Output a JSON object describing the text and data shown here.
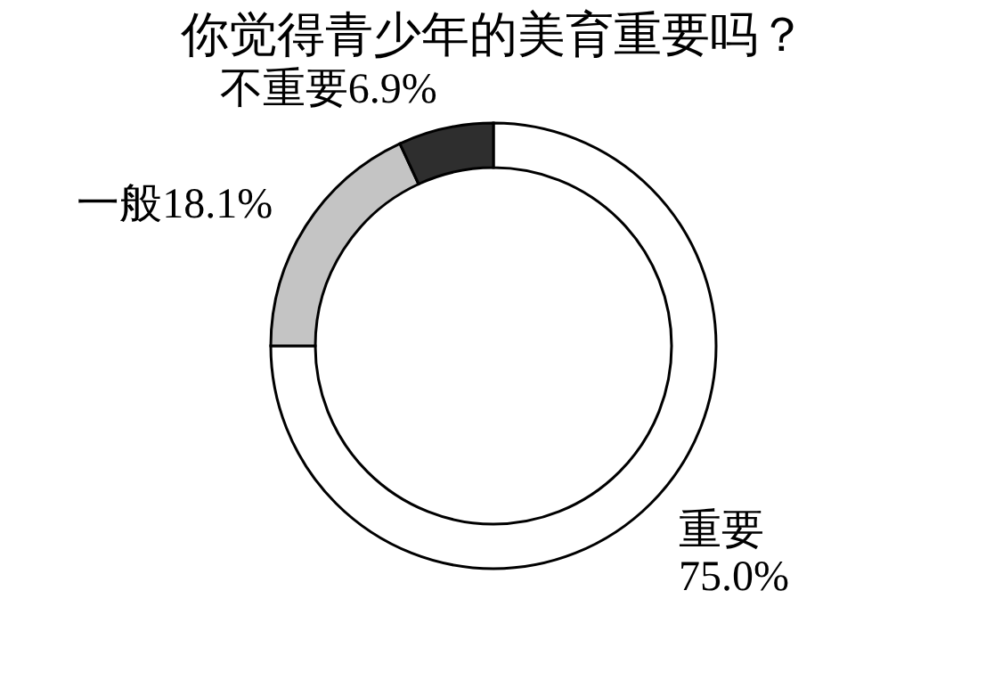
{
  "chart_data": {
    "type": "donut",
    "title": "你觉得青少年的美育重要吗？",
    "categories": [
      "重要",
      "一般",
      "不重要"
    ],
    "values": [
      75.0,
      18.1,
      6.9
    ],
    "colors": [
      "#ffffff",
      "#c4c4c4",
      "#2e2e2e"
    ],
    "value_labels": [
      "75.0%",
      "18.1%",
      "6.9%"
    ],
    "legend": false
  }
}
